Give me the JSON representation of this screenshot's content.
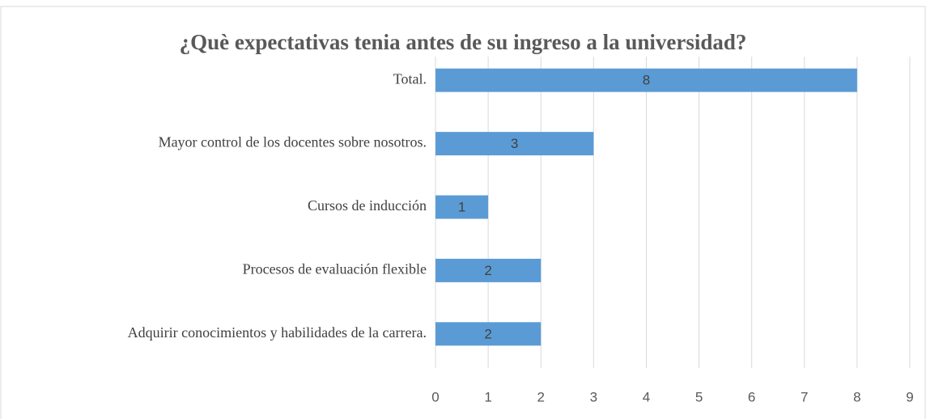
{
  "chart_data": {
    "type": "bar",
    "orientation": "horizontal",
    "title": "¿Què expectativas tenia antes de su ingreso a la universidad?",
    "categories": [
      "Total.",
      "Mayor control de los docentes sobre nosotros.",
      "Cursos de inducción",
      "Procesos de evaluación flexible",
      "Adquirir conocimientos y habilidades de la carrera."
    ],
    "values": [
      8,
      3,
      1,
      2,
      2
    ],
    "color": "#5b9bd5",
    "xlim": [
      0,
      9
    ],
    "xticks": [
      0,
      1,
      2,
      3,
      4,
      5,
      6,
      7,
      8,
      9
    ],
    "grid": true
  }
}
